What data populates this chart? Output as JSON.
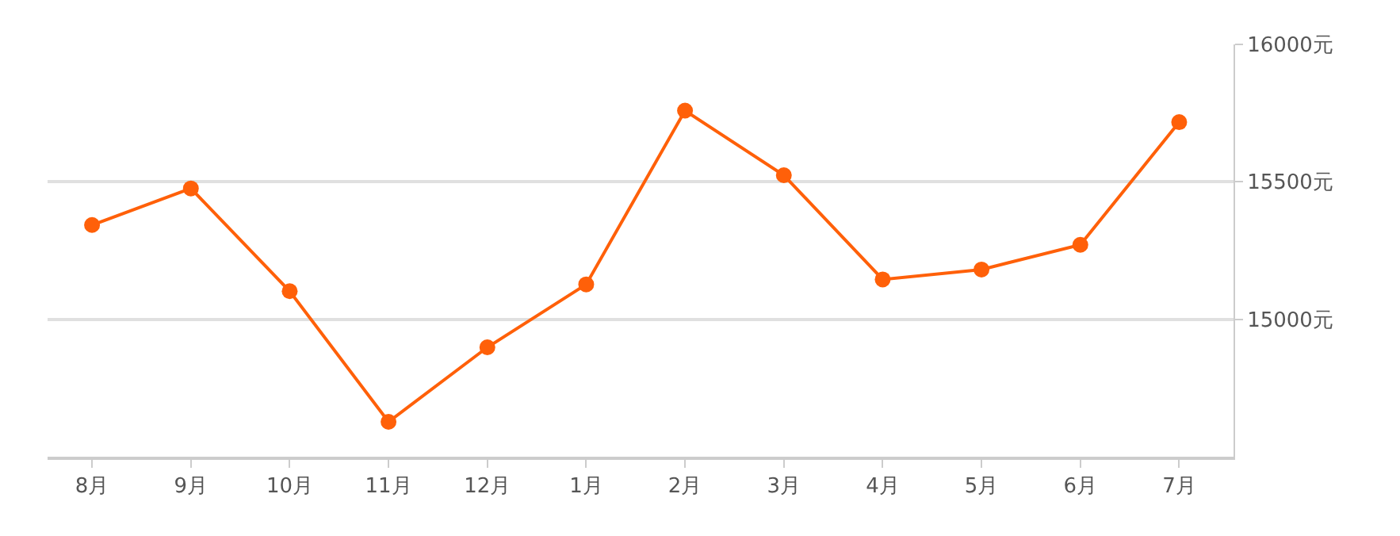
{
  "chart_data": {
    "type": "line",
    "categories": [
      "8月",
      "9月",
      "10月",
      "11月",
      "12月",
      "1月",
      "2月",
      "3月",
      "4月",
      "5月",
      "6月",
      "7月"
    ],
    "series": [
      {
        "color": "#ff6009",
        "values": [
          15343,
          15476,
          15102,
          14627,
          14898,
          15127,
          15759,
          15524,
          15145,
          15181,
          15271,
          15717
        ]
      }
    ],
    "ylim": [
      14500,
      16000
    ],
    "yticks": [
      {
        "value": 15000,
        "label": "15000元"
      },
      {
        "value": 15500,
        "label": "15500元"
      },
      {
        "value": 16000,
        "label": "16000元"
      }
    ],
    "grid": "y",
    "legend": false,
    "marker": "circle",
    "line_style": "solid"
  }
}
